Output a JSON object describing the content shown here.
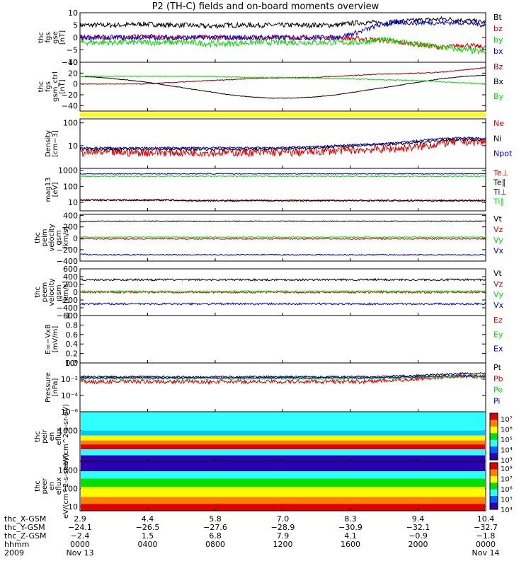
{
  "title": "P2 (TH-C) fields and on-board moments overview",
  "colors": {
    "black": "#000000",
    "red": "#e00000",
    "green": "#00dd00",
    "blue": "#0000e0",
    "darkred": "#a00000",
    "yellow": "#ffff00",
    "colorbar_low": "#2a00b0",
    "colorbar_high": "#e00000"
  },
  "chart_data": [
    {
      "type": "line",
      "id": "p1",
      "ylabel": "thc fgs gse [nT]",
      "ylim": [
        -10,
        10
      ],
      "ticks": [
        {
          "v": 10,
          "label": "10"
        },
        {
          "v": 5,
          "label": "5"
        },
        {
          "v": 0,
          "label": "0"
        },
        {
          "v": -5,
          "label": "−5"
        },
        {
          "v": -10,
          "label": "−10"
        }
      ],
      "series": [
        {
          "name": "Bt",
          "color": "#000000",
          "noise": 1.0,
          "values": [
            5,
            5,
            5,
            5.5,
            5,
            5,
            4.5,
            5,
            5,
            5,
            5,
            5,
            5,
            6,
            6,
            6.5,
            7,
            7.5,
            7,
            6
          ]
        },
        {
          "name": "bz",
          "color": "#e00000",
          "noise": 1.0,
          "values": [
            0,
            0,
            0,
            0.5,
            0,
            0,
            0,
            0,
            0,
            0,
            0,
            0,
            0,
            -0.5,
            -1,
            -2,
            -3,
            -4,
            -3,
            -4
          ]
        },
        {
          "name": "by",
          "color": "#00dd00",
          "noise": 1.2,
          "values": [
            -2,
            -2,
            -2,
            -2,
            -2,
            -2,
            -2.5,
            -2.5,
            -2,
            -2,
            -2,
            -2,
            -2,
            -2,
            -1,
            -1.5,
            -3,
            -4,
            -5,
            -6
          ]
        },
        {
          "name": "bx",
          "color": "#0000e0",
          "noise": 1.0,
          "values": [
            0,
            0,
            0,
            0,
            0,
            0,
            0,
            0,
            0,
            0,
            0,
            0,
            0,
            2,
            5,
            6,
            6,
            6,
            6,
            5
          ]
        }
      ]
    },
    {
      "type": "line",
      "id": "p2",
      "ylabel": "thc fgs gsm_ctrl [nT]",
      "ylim": [
        -50,
        40
      ],
      "ticks": [
        {
          "v": 40,
          "label": "40"
        },
        {
          "v": 20,
          "label": "20"
        },
        {
          "v": 0,
          "label": "0"
        },
        {
          "v": -20,
          "label": "−20"
        },
        {
          "v": -40,
          "label": "−40"
        }
      ],
      "series": [
        {
          "name": "Bz",
          "color": "#a00000",
          "noise": 0.8,
          "values": [
            0,
            0,
            0,
            0,
            2,
            4,
            6,
            8,
            10,
            11,
            12,
            12,
            14,
            16,
            18,
            19,
            20,
            22,
            26,
            30
          ]
        },
        {
          "name": "Bx",
          "color": "#000000",
          "noise": 0.5,
          "values": [
            14,
            12,
            8,
            4,
            -2,
            -8,
            -14,
            -20,
            -24,
            -26,
            -26,
            -24,
            -20,
            -14,
            -8,
            -2,
            4,
            10,
            14,
            16
          ]
        },
        {
          "name": "By",
          "color": "#00dd00",
          "noise": 0.8,
          "values": [
            14,
            14,
            14,
            14,
            14,
            14,
            14,
            13,
            12,
            12,
            11,
            11,
            10,
            9,
            8,
            7,
            6,
            4,
            2,
            0
          ]
        }
      ]
    },
    {
      "type": "line",
      "id": "p3",
      "ylabel": "Density [cm−3]",
      "yscale": "log",
      "ylim": [
        1,
        150
      ],
      "ticks": [
        {
          "v": 100,
          "label": "100"
        },
        {
          "v": 10,
          "label": "10"
        }
      ],
      "series": [
        {
          "name": "Ne",
          "color": "#e00000",
          "noise": 0.18,
          "values": [
            5,
            5,
            5,
            5,
            5,
            5,
            5,
            5,
            5,
            5,
            5,
            5.5,
            6,
            6.5,
            7,
            7.5,
            9,
            13,
            15,
            14
          ]
        },
        {
          "name": "Ni",
          "color": "#000000",
          "noise": 0.06,
          "values": [
            7,
            7,
            7,
            7,
            7,
            7,
            7,
            7,
            7,
            7,
            7.5,
            8,
            9,
            10,
            11,
            12,
            14,
            18,
            19,
            18
          ]
        },
        {
          "name": "Npot",
          "color": "#0000e0",
          "noise": 0.04,
          "values": [
            8,
            8,
            8,
            8,
            8,
            8,
            8,
            8,
            8,
            8,
            8.5,
            9,
            10,
            11,
            12,
            14,
            17,
            21,
            22,
            21
          ]
        }
      ]
    },
    {
      "type": "line",
      "id": "p4",
      "ylabel": "mag13 [eV]",
      "yscale": "log",
      "ylim": [
        3,
        1300
      ],
      "ticks": [
        {
          "v": 1000,
          "label": "1000"
        },
        {
          "v": 100,
          "label": "100"
        },
        {
          "v": 10,
          "label": "10"
        }
      ],
      "series": [
        {
          "name": "Te⊥",
          "color": "#e00000",
          "noise": 0.05,
          "values": [
            14,
            14,
            14,
            14,
            14,
            13,
            13,
            13,
            13,
            13,
            13,
            13,
            13,
            13,
            13,
            13,
            13,
            13,
            13,
            13
          ]
        },
        {
          "name": "Te∥",
          "color": "#000000",
          "noise": 0.05,
          "values": [
            14,
            14,
            14,
            14,
            14,
            13,
            13,
            13,
            13,
            13,
            13,
            13,
            13,
            13,
            13,
            13,
            13,
            13,
            13,
            13
          ]
        },
        {
          "name": "Ti⊥",
          "color": "#0000e0",
          "noise": 0.03,
          "values": [
            600,
            600,
            600,
            600,
            600,
            600,
            600,
            600,
            600,
            600,
            600,
            600,
            600,
            600,
            600,
            600,
            600,
            600,
            600,
            600
          ]
        },
        {
          "name": "Ti∥",
          "color": "#00dd00",
          "noise": 0.03,
          "values": [
            420,
            420,
            420,
            420,
            420,
            420,
            420,
            420,
            420,
            420,
            420,
            420,
            420,
            420,
            420,
            420,
            420,
            420,
            420,
            420
          ]
        }
      ]
    },
    {
      "type": "line",
      "id": "p5",
      "ylabel": "thc peim velocity gsm [km/s]",
      "ylim": [
        -400,
        420
      ],
      "ticks": [
        {
          "v": 400,
          "label": "400"
        },
        {
          "v": 200,
          "label": "200"
        },
        {
          "v": 0,
          "label": "0"
        },
        {
          "v": -200,
          "label": "−200"
        },
        {
          "v": -400,
          "label": "−400"
        }
      ],
      "series": [
        {
          "name": "Vt",
          "color": "#000000",
          "noise": 8,
          "values": [
            290,
            300,
            300,
            300,
            300,
            300,
            300,
            300,
            300,
            300,
            300,
            300,
            300,
            300,
            300,
            300,
            300,
            300,
            300,
            300
          ]
        },
        {
          "name": "Vz",
          "color": "#e00000",
          "noise": 10,
          "values": [
            -10,
            -10,
            -10,
            -10,
            -10,
            -10,
            -10,
            -10,
            -10,
            -10,
            -10,
            -10,
            -10,
            -10,
            -10,
            -10,
            -10,
            -10,
            -10,
            -10
          ]
        },
        {
          "name": "Vy",
          "color": "#00dd00",
          "noise": 8,
          "values": [
            20,
            20,
            20,
            20,
            20,
            20,
            20,
            20,
            20,
            20,
            20,
            20,
            20,
            20,
            20,
            20,
            20,
            20,
            20,
            20
          ]
        },
        {
          "name": "Vx",
          "color": "#0000e0",
          "noise": 10,
          "values": [
            -280,
            -290,
            -290,
            -290,
            -290,
            -290,
            -290,
            -290,
            -290,
            -290,
            -290,
            -290,
            -290,
            -290,
            -290,
            -290,
            -290,
            -290,
            -290,
            -290
          ]
        }
      ]
    },
    {
      "type": "line",
      "id": "p6",
      "ylabel": "thc peem velocity gsm [km/s]",
      "ylim": [
        -600,
        600
      ],
      "ticks": [
        {
          "v": 600,
          "label": "600"
        },
        {
          "v": 400,
          "label": "400"
        },
        {
          "v": 200,
          "label": "200"
        },
        {
          "v": 0,
          "label": "0"
        },
        {
          "v": -200,
          "label": "−200"
        },
        {
          "v": -400,
          "label": "−400"
        },
        {
          "v": -600,
          "label": "−600"
        }
      ],
      "series": [
        {
          "name": "Vt",
          "color": "#000000",
          "noise": 25,
          "values": [
            320,
            320,
            320,
            320,
            320,
            320,
            320,
            320,
            320,
            320,
            320,
            320,
            320,
            320,
            320,
            320,
            320,
            320,
            320,
            320
          ]
        },
        {
          "name": "Vz",
          "color": "#e00000",
          "noise": 25,
          "values": [
            0,
            0,
            0,
            0,
            0,
            0,
            0,
            0,
            0,
            0,
            0,
            0,
            0,
            0,
            0,
            0,
            0,
            0,
            0,
            0
          ]
        },
        {
          "name": "Vy",
          "color": "#00dd00",
          "noise": 20,
          "values": [
            20,
            20,
            20,
            20,
            20,
            20,
            20,
            20,
            20,
            20,
            20,
            20,
            20,
            20,
            20,
            20,
            20,
            20,
            20,
            20
          ]
        },
        {
          "name": "Vx",
          "color": "#0000e0",
          "noise": 25,
          "values": [
            -300,
            -300,
            -300,
            -300,
            -300,
            -300,
            -300,
            -300,
            -300,
            -300,
            -300,
            -300,
            -300,
            -300,
            -300,
            -300,
            -300,
            -300,
            -300,
            -300
          ]
        }
      ]
    },
    {
      "type": "line",
      "id": "p7",
      "ylabel": "E=−VxB [mV/m]",
      "ylim": [
        0,
        1
      ],
      "ticks": [
        {
          "v": 1,
          "label": "1.0"
        },
        {
          "v": 0.8,
          "label": "0.8"
        },
        {
          "v": 0.6,
          "label": "0.6"
        },
        {
          "v": 0.4,
          "label": "0.4"
        },
        {
          "v": 0.2,
          "label": "0.2"
        },
        {
          "v": 0,
          "label": "0.0"
        }
      ],
      "series": [
        {
          "name": "Ez",
          "color": "#e00000",
          "values": []
        },
        {
          "name": "Ey",
          "color": "#00dd00",
          "values": []
        },
        {
          "name": "Ex",
          "color": "#0000e0",
          "values": []
        }
      ]
    },
    {
      "type": "line",
      "id": "p8",
      "ylabel": "Pressure [nPa]",
      "yscale": "log",
      "ylim": [
        1e-06,
        1
      ],
      "ticks": [
        {
          "v": 1,
          "label": "10⁰"
        },
        {
          "v": 0.01,
          "label": "10⁻²"
        },
        {
          "v": 0.0001,
          "label": "10⁻⁴"
        },
        {
          "v": 1e-06,
          "label": "10⁻⁶"
        }
      ],
      "series": [
        {
          "name": "Pt",
          "color": "#000000",
          "noise": 0.12,
          "values": [
            0.02,
            0.02,
            0.02,
            0.02,
            0.02,
            0.02,
            0.02,
            0.02,
            0.02,
            0.02,
            0.02,
            0.02,
            0.02,
            0.02,
            0.02,
            0.025,
            0.03,
            0.04,
            0.05,
            0.05
          ]
        },
        {
          "name": "Pb",
          "color": "#e00000",
          "noise": 0.25,
          "values": [
            0.005,
            0.005,
            0.005,
            0.005,
            0.005,
            0.005,
            0.005,
            0.005,
            0.005,
            0.005,
            0.005,
            0.005,
            0.005,
            0.005,
            0.006,
            0.008,
            0.012,
            0.02,
            0.025,
            0.02
          ]
        },
        {
          "name": "Pe",
          "color": "#00dd00",
          "noise": 0.12,
          "values": [
            0.012,
            0.012,
            0.012,
            0.012,
            0.012,
            0.012,
            0.012,
            0.012,
            0.012,
            0.012,
            0.012,
            0.012,
            0.012,
            0.012,
            0.013,
            0.015,
            0.018,
            0.02,
            0.02,
            0.02
          ]
        },
        {
          "name": "Pi",
          "color": "#0000e0",
          "noise": 0.08,
          "values": [
            0.015,
            0.015,
            0.015,
            0.015,
            0.015,
            0.015,
            0.015,
            0.015,
            0.015,
            0.015,
            0.015,
            0.015,
            0.015,
            0.015,
            0.016,
            0.018,
            0.02,
            0.025,
            0.025,
            0.025
          ]
        }
      ]
    },
    {
      "type": "heatmap",
      "id": "p9",
      "ylabel": "thc peir en eflux eV/(cm^2-s-sr-eV)",
      "yscale": "log",
      "ylim": [
        5,
        25000
      ],
      "ticks": [
        {
          "v": 1000,
          "label": "1000"
        }
      ],
      "colorbar_ticks": [
        "10⁷",
        "10⁶",
        "10⁵",
        "10⁴",
        "10³"
      ]
    },
    {
      "type": "heatmap",
      "id": "p10",
      "ylabel": "thc peer en eflux eV/(cm^2-s-sr-eV)",
      "yscale": "log",
      "ylim": [
        6,
        3000
      ],
      "ticks": [
        {
          "v": 1000,
          "label": "1000"
        },
        {
          "v": 100,
          "label": "100"
        },
        {
          "v": 10,
          "label": "10"
        }
      ],
      "colorbar_ticks": [
        "10⁸",
        "10⁷",
        "10⁶",
        "10⁵",
        "10⁴"
      ]
    }
  ],
  "xaxis": {
    "row_labels": [
      "thc_X-GSM",
      "thc_Y-GSM",
      "thc_Z-GSM",
      "hhmm",
      "2009"
    ],
    "columns": [
      {
        "x": "2.9",
        "y": "−24.1",
        "z": "−2.4",
        "hhmm": "0000",
        "date": "Nov 13",
        "frac": 0
      },
      {
        "x": "4.4",
        "y": "−26.5",
        "z": "1.5",
        "hhmm": "0400",
        "date": "",
        "frac": 0.1667
      },
      {
        "x": "5.8",
        "y": "−27.6",
        "z": "6.8",
        "hhmm": "0800",
        "date": "",
        "frac": 0.3333
      },
      {
        "x": "7.0",
        "y": "−28.9",
        "z": "7.9",
        "hhmm": "1200",
        "date": "",
        "frac": 0.5
      },
      {
        "x": "8.3",
        "y": "−30.9",
        "z": "4.1",
        "hhmm": "1600",
        "date": "",
        "frac": 0.6667
      },
      {
        "x": "9.4",
        "y": "−32.1",
        "z": "−0.9",
        "hhmm": "2000",
        "date": "",
        "frac": 0.8333
      },
      {
        "x": "10.4",
        "y": "−32.7",
        "z": "−1.8",
        "hhmm": "0000",
        "date": "Nov 14",
        "frac": 1
      }
    ]
  }
}
